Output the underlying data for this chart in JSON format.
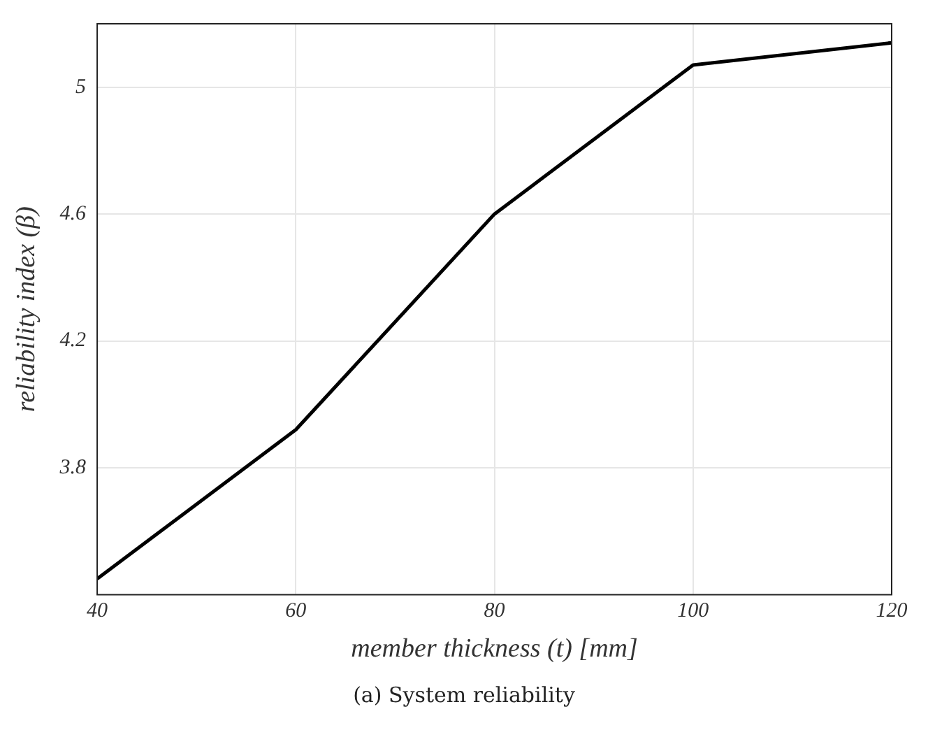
{
  "chart_data": {
    "type": "line",
    "xlabel": "member thickness (t) [mm]",
    "ylabel": "reliability index (β)",
    "annotations": [
      "(a) System reliability"
    ],
    "x": [
      40,
      60,
      80,
      100,
      120
    ],
    "series": [
      {
        "color": "#000000",
        "values": [
          3.45,
          3.92,
          4.6,
          5.07,
          5.14
        ]
      }
    ],
    "xlim": [
      40,
      120
    ],
    "xticks": [
      40,
      60,
      80,
      100,
      120
    ],
    "ylim": [
      3.4,
      5.2
    ],
    "yticks": [
      3.8,
      4.2,
      4.6,
      5
    ],
    "grid": true,
    "legend": false,
    "marker": "none",
    "line_style": "solid"
  }
}
